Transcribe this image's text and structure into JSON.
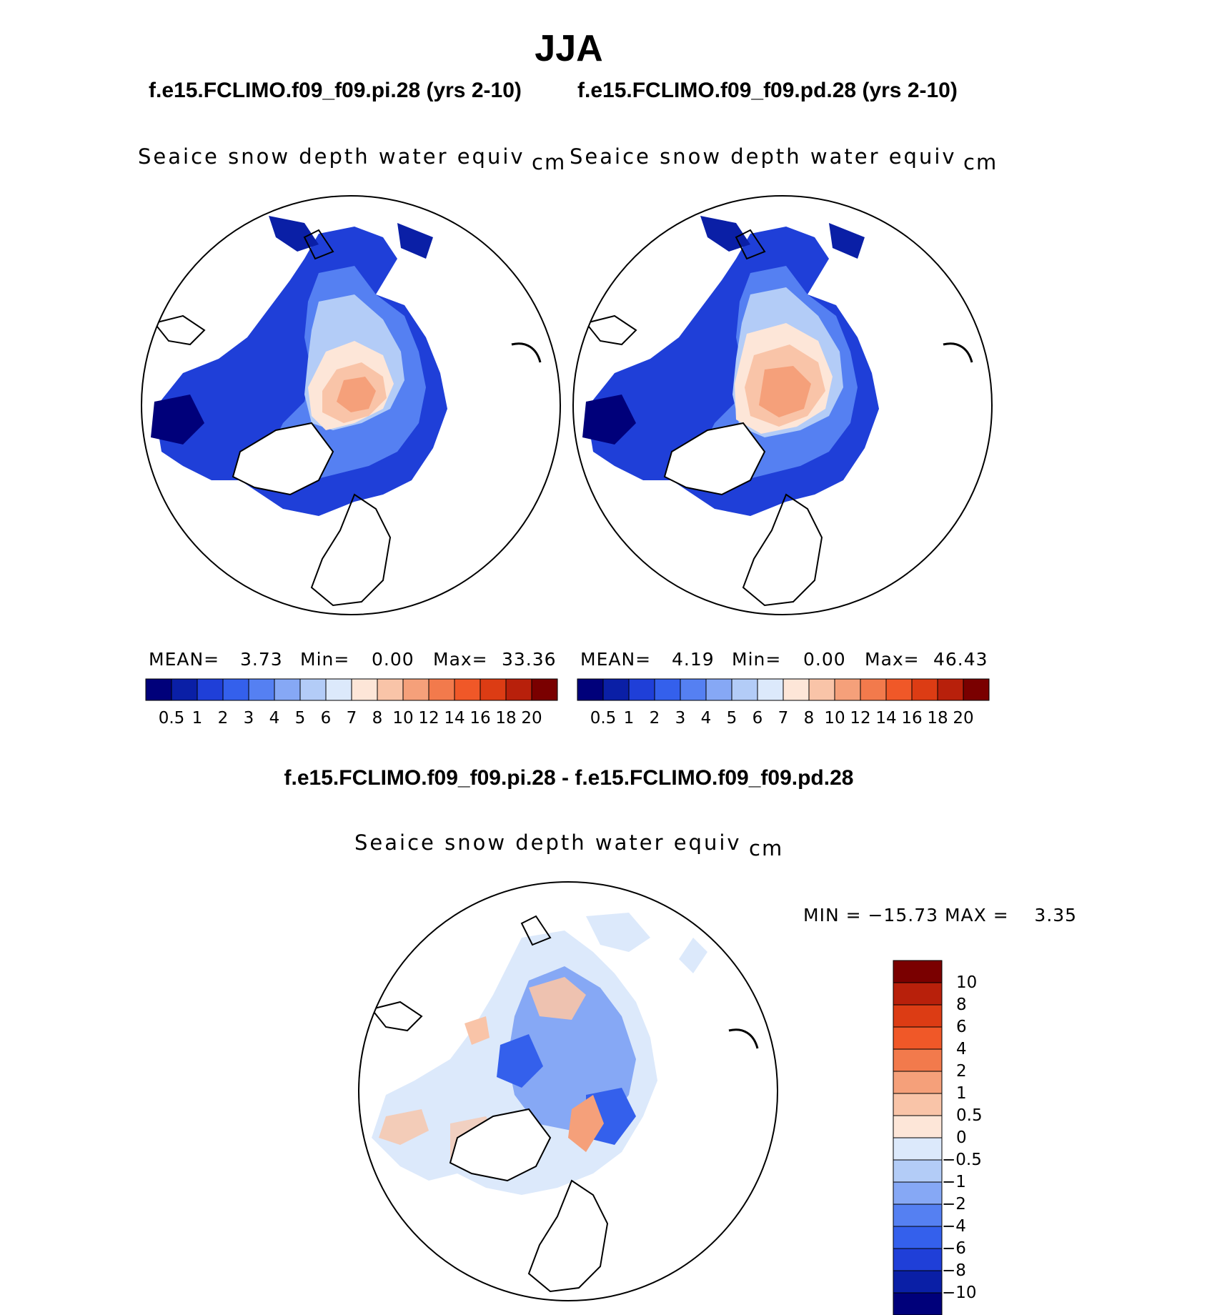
{
  "season": "JJA",
  "panels": [
    {
      "case": "f.e15.FCLIMO.f09_f09.pi.28 (yrs 2-10)",
      "variable": "Seaice snow depth water equiv",
      "units": "cm",
      "mean_label": "MEAN=",
      "mean": "3.73",
      "min_label": "Min=",
      "min": "0.00",
      "max_label": "Max=",
      "max": "33.36"
    },
    {
      "case": "f.e15.FCLIMO.f09_f09.pd.28 (yrs 2-10)",
      "variable": "Seaice snow depth water equiv",
      "units": "cm",
      "mean_label": "MEAN=",
      "mean": "4.19",
      "min_label": "Min=",
      "min": "0.00",
      "max_label": "Max=",
      "max": "46.43"
    }
  ],
  "diff": {
    "title": "f.e15.FCLIMO.f09_f09.pi.28 - f.e15.FCLIMO.f09_f09.pd.28",
    "variable": "Seaice snow depth water equiv",
    "units": "cm",
    "range_text": "MIN = −15.73 MAX =    3.35"
  },
  "abs_colorbar": {
    "colors": [
      "#00007a",
      "#0a1fa6",
      "#1f3fd8",
      "#3460ec",
      "#5580f2",
      "#86a8f5",
      "#b3ccf7",
      "#dce9fb",
      "#fde6d8",
      "#f9c4a8",
      "#f5a07a",
      "#f27a4c",
      "#f05828",
      "#dc3c14",
      "#b8200b",
      "#7a0000"
    ],
    "ticks": [
      "0.5",
      "1",
      "2",
      "3",
      "4",
      "5",
      "6",
      "7",
      "8",
      "10",
      "12",
      "14",
      "16",
      "18",
      "20"
    ]
  },
  "diff_colorbar": {
    "colors_top_to_bottom": [
      "#7a0000",
      "#b8200b",
      "#dc3c14",
      "#f05828",
      "#f27a4c",
      "#f5a07a",
      "#f9c4a8",
      "#fde6d8",
      "#dce9fb",
      "#b3ccf7",
      "#86a8f5",
      "#5580f2",
      "#3460ec",
      "#1f3fd8",
      "#0a1fa6",
      "#00007a"
    ],
    "ticks_top_to_bottom": [
      "10",
      "8",
      "6",
      "4",
      "2",
      "1",
      "0.5",
      "0",
      "−0.5",
      "−1",
      "−2",
      "−4",
      "−6",
      "−8",
      "−10"
    ]
  }
}
